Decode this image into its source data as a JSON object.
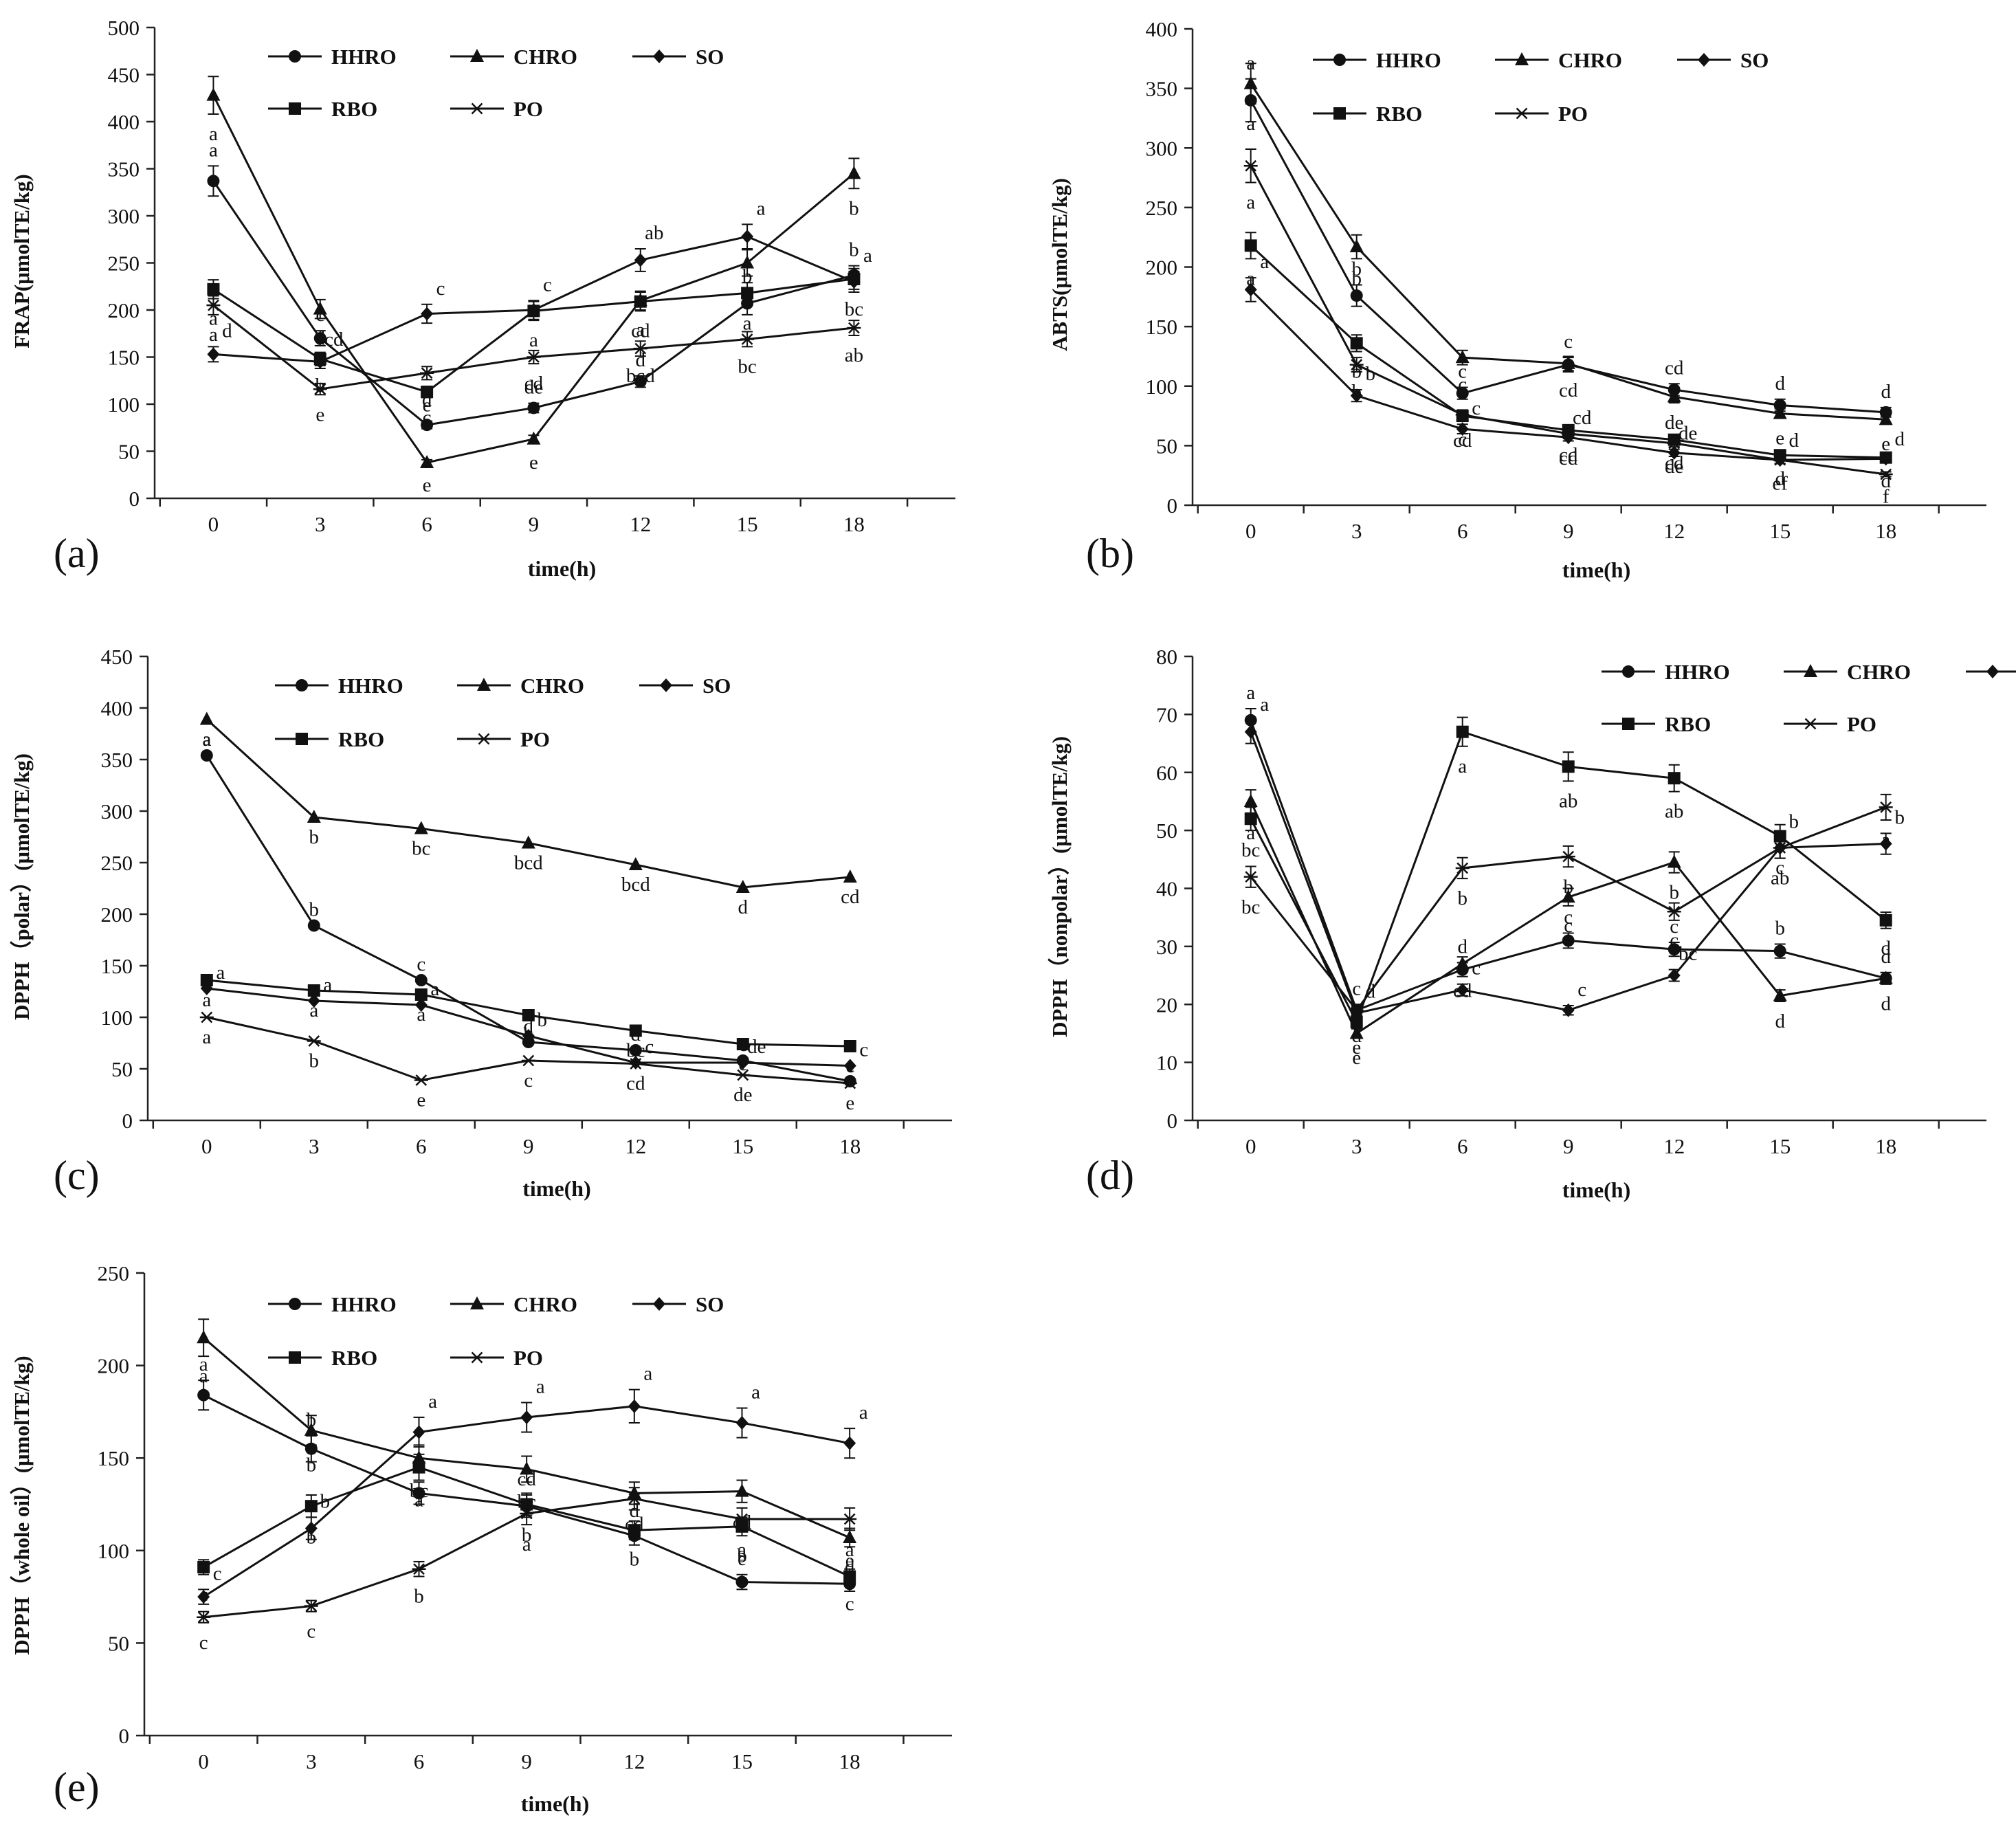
{
  "figure": {
    "legend_names": [
      "HHRO",
      "CHRO",
      "SO",
      "RBO",
      "PO"
    ],
    "x_label": "time(h)"
  },
  "chart_data": [
    {
      "type": "line",
      "panel": "(a)",
      "ylabel": "FRAP(μmolTE/kg)",
      "xlabel": "time(h)",
      "x": [
        0,
        3,
        6,
        9,
        12,
        15,
        18
      ],
      "ylim": [
        0,
        500
      ],
      "ystep": 50,
      "legend": "top",
      "series": [
        {
          "name": "HHRO",
          "marker": "circle",
          "values": [
            337,
            170,
            78,
            96,
            124,
            207,
            237
          ],
          "errors": [
            16,
            8,
            4,
            5,
            6,
            12,
            10
          ],
          "letters": [
            "a",
            "c",
            "e",
            "de",
            "d",
            "b",
            "b"
          ]
        },
        {
          "name": "CHRO",
          "marker": "triangle",
          "values": [
            428,
            201,
            38,
            63,
            210,
            250,
            345
          ],
          "errors": [
            20,
            10,
            3,
            4,
            10,
            14,
            16
          ],
          "letters": [
            "a",
            "d",
            "e",
            "e",
            "a",
            "c",
            "b"
          ]
        },
        {
          "name": "SO",
          "marker": "diamond",
          "values": [
            153,
            145,
            196,
            200,
            253,
            278,
            230
          ],
          "errors": [
            8,
            7,
            10,
            10,
            12,
            13,
            11
          ],
          "letters": [
            "d",
            "cd",
            "c",
            "c",
            "ab",
            "a",
            "a"
          ]
        },
        {
          "name": "RBO",
          "marker": "square",
          "values": [
            222,
            148,
            113,
            199,
            209,
            218,
            233
          ],
          "errors": [
            10,
            7,
            6,
            10,
            10,
            11,
            11
          ],
          "letters": [
            "a",
            "b",
            "c",
            "a",
            "cd",
            "a",
            "bc"
          ]
        },
        {
          "name": "PO",
          "marker": "star",
          "values": [
            205,
            116,
            133,
            150,
            159,
            169,
            181
          ],
          "errors": [
            10,
            6,
            7,
            7,
            8,
            8,
            8
          ],
          "letters": [
            "a",
            "e",
            "d",
            "cd",
            "bcd",
            "bc",
            "ab"
          ]
        }
      ]
    },
    {
      "type": "line",
      "panel": "(b)",
      "ylabel": "ABTS(μmolTE/kg)",
      "xlabel": "time(h)",
      "x": [
        0,
        3,
        6,
        9,
        12,
        15,
        18
      ],
      "ylim": [
        0,
        400
      ],
      "ystep": 50,
      "legend": "top",
      "series": [
        {
          "name": "HHRO",
          "marker": "circle",
          "values": [
            340,
            176,
            94,
            118,
            97,
            84,
            78
          ],
          "errors": [
            18,
            9,
            5,
            6,
            5,
            5,
            4
          ],
          "letters": [
            "a",
            "b",
            "c",
            "c",
            "cd",
            "d",
            "d"
          ]
        },
        {
          "name": "CHRO",
          "marker": "triangle",
          "values": [
            354,
            217,
            124,
            119,
            91,
            77,
            72
          ],
          "errors": [
            17,
            10,
            6,
            6,
            5,
            4,
            4
          ],
          "letters": [
            "a",
            "b",
            "c",
            "cd",
            "de",
            "e",
            "e"
          ]
        },
        {
          "name": "SO",
          "marker": "diamond",
          "values": [
            181,
            92,
            64,
            57,
            44,
            38,
            39
          ],
          "errors": [
            10,
            5,
            4,
            3,
            3,
            3,
            3
          ],
          "letters": [
            "a",
            "b",
            "c",
            "cd",
            "de",
            "d",
            "d"
          ]
        },
        {
          "name": "RBO",
          "marker": "square",
          "values": [
            218,
            136,
            75,
            63,
            55,
            42,
            40
          ],
          "errors": [
            11,
            7,
            4,
            4,
            3,
            3,
            3
          ],
          "letters": [
            "a",
            "b",
            "cd",
            "cd",
            "cd",
            "d",
            "d"
          ]
        },
        {
          "name": "PO",
          "marker": "star",
          "values": [
            285,
            118,
            76,
            60,
            52,
            38,
            26
          ],
          "errors": [
            14,
            6,
            4,
            4,
            3,
            3,
            2
          ],
          "letters": [
            "a",
            "b",
            "c",
            "cd",
            "de",
            "ef",
            "f"
          ]
        }
      ]
    },
    {
      "type": "line",
      "panel": "(c)",
      "ylabel": "DPPH（polar）(μmolTE/kg)",
      "xlabel": "time(h)",
      "x": [
        0,
        3,
        6,
        9,
        12,
        15,
        18
      ],
      "ylim": [
        0,
        450
      ],
      "ystep": 50,
      "legend": "top",
      "series": [
        {
          "name": "HHRO",
          "marker": "circle",
          "values": [
            354,
            189,
            136,
            76,
            68,
            58,
            38
          ],
          "errors": [
            0,
            0,
            0,
            0,
            0,
            0,
            0
          ],
          "letters": [
            "a",
            "b",
            "c",
            "d",
            "d",
            "c",
            "e"
          ]
        },
        {
          "name": "CHRO",
          "marker": "triangle",
          "values": [
            389,
            294,
            283,
            269,
            248,
            226,
            236
          ],
          "errors": [
            0,
            0,
            0,
            0,
            0,
            0,
            0
          ],
          "letters": [
            "a",
            "b",
            "bc",
            "bcd",
            "bcd",
            "d",
            "cd"
          ]
        },
        {
          "name": "SO",
          "marker": "diamond",
          "values": [
            128,
            116,
            112,
            82,
            56,
            56,
            53
          ],
          "errors": [
            0,
            0,
            0,
            0,
            0,
            0,
            0
          ],
          "letters": [
            "a",
            "a",
            "a",
            "b",
            "c",
            "de",
            "c"
          ]
        },
        {
          "name": "RBO",
          "marker": "square",
          "values": [
            136,
            126,
            122,
            102,
            87,
            74,
            72
          ],
          "errors": [
            0,
            0,
            0,
            0,
            0,
            0,
            0
          ],
          "letters": [
            "a",
            "a",
            "a",
            "b",
            "bc",
            "c",
            "c"
          ]
        },
        {
          "name": "PO",
          "marker": "star",
          "values": [
            100,
            77,
            39,
            58,
            55,
            44,
            36
          ],
          "errors": [
            0,
            0,
            0,
            0,
            0,
            0,
            0
          ],
          "letters": [
            "a",
            "b",
            "e",
            "c",
            "cd",
            "de",
            "e"
          ]
        }
      ]
    },
    {
      "type": "line",
      "panel": "(d)",
      "ylabel": "DPPH（nonpolar）(μmolTE/kg)",
      "xlabel": "time(h)",
      "x": [
        0,
        3,
        6,
        9,
        12,
        15,
        18
      ],
      "ylim": [
        0,
        80
      ],
      "ystep": 10,
      "legend": "top-right",
      "series": [
        {
          "name": "HHRO",
          "marker": "circle",
          "values": [
            69,
            19,
            26,
            31,
            29.5,
            29.2,
            24.5
          ],
          "errors": [
            2,
            1,
            1.2,
            1.3,
            1.2,
            1.2,
            1
          ],
          "letters": [
            "a",
            "c",
            "d",
            "c",
            "c",
            "b",
            "d"
          ]
        },
        {
          "name": "CHRO",
          "marker": "triangle",
          "values": [
            55,
            15,
            27,
            38.5,
            44.5,
            21.5,
            24.5
          ],
          "errors": [
            2,
            0.8,
            1.2,
            1.5,
            1.8,
            1,
            1
          ],
          "letters": [
            "a",
            "e",
            "cd",
            "c",
            "b",
            "d",
            "d"
          ]
        },
        {
          "name": "SO",
          "marker": "diamond",
          "values": [
            67,
            18.5,
            22.5,
            19,
            25,
            47,
            47.7
          ],
          "errors": [
            2,
            1,
            1,
            0.8,
            1,
            1.8,
            1.8
          ],
          "letters": [
            "a",
            "d",
            "c",
            "c",
            "bc",
            "b",
            "b"
          ]
        },
        {
          "name": "RBO",
          "marker": "square",
          "values": [
            52,
            17,
            67,
            61,
            59,
            49,
            34.5
          ],
          "errors": [
            2,
            1,
            2.5,
            2.5,
            2.3,
            2,
            1.4
          ],
          "letters": [
            "bc",
            "e",
            "a",
            "ab",
            "ab",
            "c",
            "d"
          ]
        },
        {
          "name": "PO",
          "marker": "star",
          "values": [
            42,
            19,
            43.5,
            45.5,
            36,
            47,
            54
          ],
          "errors": [
            1.8,
            1,
            1.8,
            1.8,
            1.5,
            1.8,
            2.2
          ],
          "letters": [
            "bc",
            "d",
            "b",
            "b",
            "c",
            "ab",
            "a"
          ]
        }
      ]
    },
    {
      "type": "line",
      "panel": "(e)",
      "ylabel": "DPPH（whole oil）(μmolTE/kg)",
      "xlabel": "time(h)",
      "x": [
        0,
        3,
        6,
        9,
        12,
        15,
        18
      ],
      "ylim": [
        0,
        250
      ],
      "ystep": 50,
      "legend": "top",
      "series": [
        {
          "name": "HHRO",
          "marker": "circle",
          "values": [
            184,
            155,
            131,
            124,
            108,
            83,
            82
          ],
          "errors": [
            8,
            7,
            6,
            6,
            5,
            4,
            4
          ],
          "letters": [
            "a",
            "b",
            "c",
            "cd",
            "d",
            "e",
            "e"
          ]
        },
        {
          "name": "CHRO",
          "marker": "triangle",
          "values": [
            215,
            165,
            150,
            144,
            131,
            132,
            107
          ],
          "errors": [
            10,
            8,
            7,
            7,
            6,
            6,
            5
          ],
          "letters": [
            "a",
            "b",
            "bc",
            "bc",
            "cd",
            "cd",
            "d"
          ]
        },
        {
          "name": "SO",
          "marker": "diamond",
          "values": [
            75,
            112,
            164,
            172,
            178,
            169,
            158
          ],
          "errors": [
            4,
            6,
            8,
            8,
            9,
            8,
            8
          ],
          "letters": [
            "c",
            "b",
            "a",
            "a",
            "a",
            "a",
            "a"
          ]
        },
        {
          "name": "RBO",
          "marker": "square",
          "values": [
            91,
            124,
            145,
            125,
            111,
            113,
            86
          ],
          "errors": [
            4,
            6,
            7,
            6,
            5,
            5,
            4
          ],
          "letters": [
            "c",
            "b",
            "a",
            "b",
            "b",
            "b",
            "c"
          ]
        },
        {
          "name": "PO",
          "marker": "star",
          "values": [
            64,
            70,
            90,
            120,
            128,
            117,
            117
          ],
          "errors": [
            3,
            3,
            4,
            6,
            6,
            6,
            6
          ],
          "letters": [
            "c",
            "c",
            "b",
            "a",
            "a",
            "a",
            "a"
          ]
        }
      ]
    }
  ]
}
